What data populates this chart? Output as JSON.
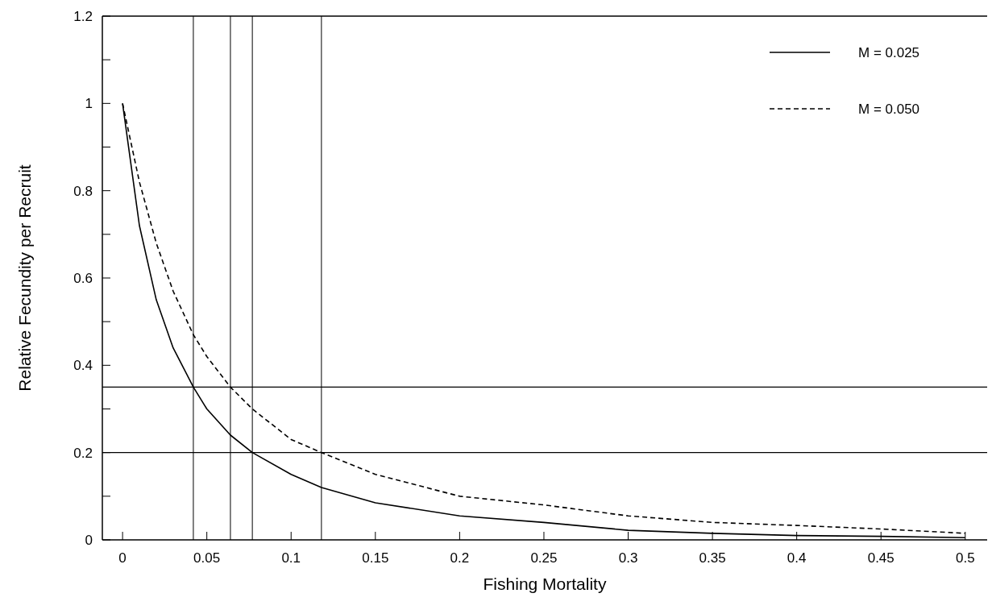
{
  "chart_data": {
    "type": "line",
    "xlabel": "Fishing Mortality",
    "ylabel": "Relative Fecundity per Recruit",
    "xlim": [
      -0.012,
      0.513
    ],
    "ylim": [
      0,
      1.2
    ],
    "xticks": [
      0,
      0.05,
      0.1,
      0.15,
      0.2,
      0.25,
      0.3,
      0.35,
      0.4,
      0.45,
      0.5
    ],
    "yticks": [
      0,
      {
        "value": 0.1,
        "label": null
      },
      0.2,
      {
        "value": 0.3,
        "label": null
      },
      0.4,
      {
        "value": 0.5,
        "label": null
      },
      0.6,
      {
        "value": 0.7,
        "label": null
      },
      0.8,
      {
        "value": 0.9,
        "label": null
      },
      1,
      {
        "value": 1.1,
        "label": null
      },
      1.2
    ],
    "x": [
      0,
      0.01,
      0.02,
      0.03,
      0.042,
      0.05,
      0.064,
      0.077,
      0.1,
      0.118,
      0.15,
      0.2,
      0.25,
      0.3,
      0.35,
      0.4,
      0.45,
      0.5
    ],
    "series": [
      {
        "name": "M = 0.025",
        "color": "#000000",
        "line_style": "solid",
        "values": [
          1,
          0.72,
          0.55,
          0.44,
          0.35,
          0.3,
          0.24,
          0.2,
          0.15,
          0.12,
          0.085,
          0.055,
          0.04,
          0.022,
          0.015,
          0.01,
          0.008,
          0.005
        ]
      },
      {
        "name": "M = 0.050",
        "color": "#000000",
        "line_style": "dashed",
        "values": [
          1,
          0.82,
          0.68,
          0.57,
          0.47,
          0.42,
          0.35,
          0.3,
          0.23,
          0.2,
          0.15,
          0.1,
          0.08,
          0.055,
          0.04,
          0.033,
          0.025,
          0.015
        ]
      }
    ],
    "ref_lines": [
      {
        "axis": "y",
        "value": 0.35,
        "color": "#000000"
      },
      {
        "axis": "y",
        "value": 0.2,
        "color": "#000000"
      },
      {
        "axis": "x",
        "value": 0.042,
        "color": "#000000"
      },
      {
        "axis": "x",
        "value": 0.064,
        "color": "#000000"
      },
      {
        "axis": "x",
        "value": 0.077,
        "color": "#000000"
      },
      {
        "axis": "x",
        "value": 0.118,
        "color": "#000000"
      }
    ],
    "legend": "top right",
    "grid": false,
    "marker": "none"
  }
}
